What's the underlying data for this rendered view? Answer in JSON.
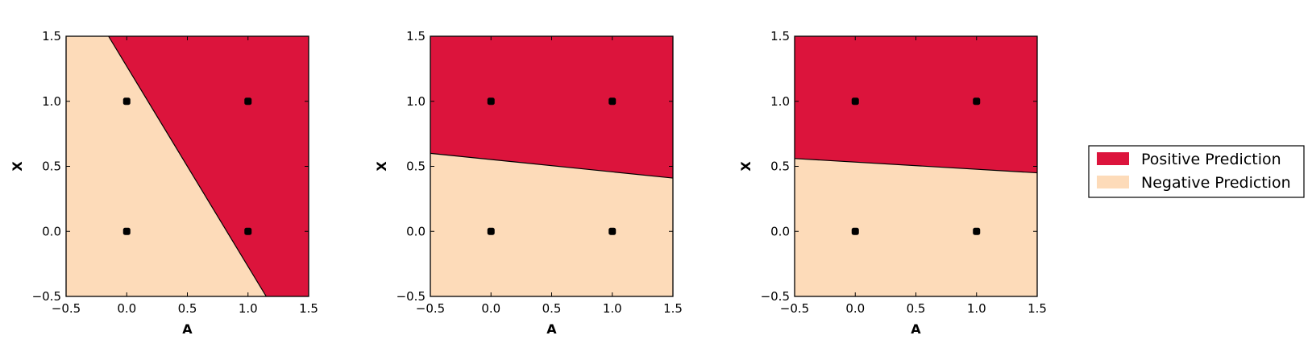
{
  "colors": {
    "positive": "#dc143c",
    "negative": "#fddbb9",
    "point": "#000000",
    "frame": "#000000"
  },
  "legend": {
    "placement": "right",
    "entries": [
      {
        "label": "Positive Prediction",
        "color": "#dc143c"
      },
      {
        "label": "Negative Prediction",
        "color": "#fddbb9"
      }
    ]
  },
  "chart_data": [
    {
      "type": "scatter",
      "xlabel": "A",
      "ylabel": "X",
      "xlim": [
        -0.5,
        1.5
      ],
      "ylim": [
        -0.5,
        1.5
      ],
      "xticks": [
        -0.5,
        0.0,
        0.5,
        1.0,
        1.5
      ],
      "yticks": [
        -0.5,
        0.0,
        0.5,
        1.0,
        1.5
      ],
      "xtick_labels": [
        "−0.5",
        "0.0",
        "0.5",
        "1.0",
        "1.5"
      ],
      "ytick_labels": [
        "−0.5",
        "0.0",
        "0.5",
        "1.0",
        "1.5"
      ],
      "points": [
        {
          "x": 0,
          "y": 0
        },
        {
          "x": 0,
          "y": 1
        },
        {
          "x": 1,
          "y": 0
        },
        {
          "x": 1,
          "y": 1
        }
      ],
      "decision_boundary": [
        {
          "x": -0.15,
          "y": 1.5
        },
        {
          "x": 1.15,
          "y": -0.5
        }
      ],
      "positive_side": "right"
    },
    {
      "type": "scatter",
      "xlabel": "A",
      "ylabel": "X",
      "xlim": [
        -0.5,
        1.5
      ],
      "ylim": [
        -0.5,
        1.5
      ],
      "xticks": [
        -0.5,
        0.0,
        0.5,
        1.0,
        1.5
      ],
      "yticks": [
        -0.5,
        0.0,
        0.5,
        1.0,
        1.5
      ],
      "xtick_labels": [
        "−0.5",
        "0.0",
        "0.5",
        "1.0",
        "1.5"
      ],
      "ytick_labels": [
        "−0.5",
        "0.0",
        "0.5",
        "1.0",
        "1.5"
      ],
      "points": [
        {
          "x": 0,
          "y": 0
        },
        {
          "x": 0,
          "y": 1
        },
        {
          "x": 1,
          "y": 0
        },
        {
          "x": 1,
          "y": 1
        }
      ],
      "decision_boundary": [
        {
          "x": -0.5,
          "y": 0.6
        },
        {
          "x": 1.5,
          "y": 0.41
        }
      ],
      "positive_side": "above"
    },
    {
      "type": "scatter",
      "xlabel": "A",
      "ylabel": "X",
      "xlim": [
        -0.5,
        1.5
      ],
      "ylim": [
        -0.5,
        1.5
      ],
      "xticks": [
        -0.5,
        0.0,
        0.5,
        1.0,
        1.5
      ],
      "yticks": [
        -0.5,
        0.0,
        0.5,
        1.0,
        1.5
      ],
      "xtick_labels": [
        "−0.5",
        "0.0",
        "0.5",
        "1.0",
        "1.5"
      ],
      "ytick_labels": [
        "−0.5",
        "0.0",
        "0.5",
        "1.0",
        "1.5"
      ],
      "points": [
        {
          "x": 0,
          "y": 0
        },
        {
          "x": 0,
          "y": 1
        },
        {
          "x": 1,
          "y": 0
        },
        {
          "x": 1,
          "y": 1
        }
      ],
      "decision_boundary": [
        {
          "x": -0.5,
          "y": 0.56
        },
        {
          "x": 1.5,
          "y": 0.45
        }
      ],
      "positive_side": "above"
    }
  ]
}
